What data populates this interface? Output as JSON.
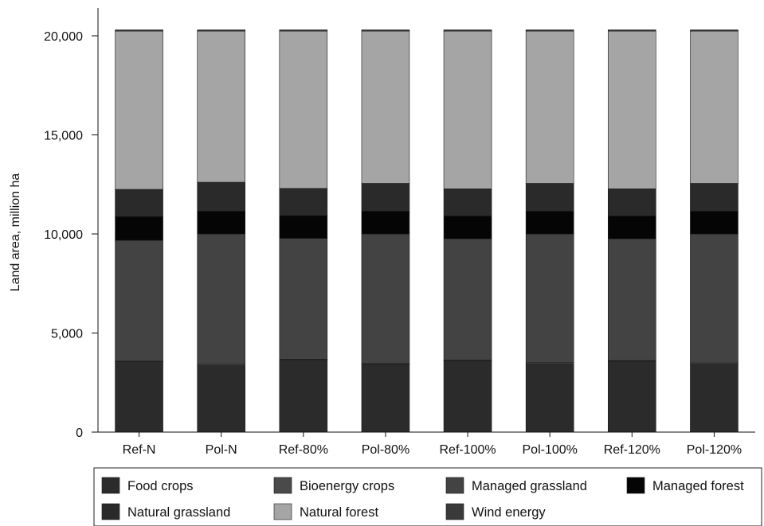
{
  "chart_data": {
    "type": "bar",
    "stacked": true,
    "categories": [
      "Ref-N",
      "Pol-N",
      "Ref-80%",
      "Pol-80%",
      "Ref-100%",
      "Pol-100%",
      "Ref-120%",
      "Pol-120%"
    ],
    "series": [
      {
        "name": "Food crops",
        "color": "#2b2b2b",
        "values": [
          3550,
          3350,
          3650,
          3420,
          3600,
          3430,
          3580,
          3420
        ]
      },
      {
        "name": "Bioenergy crops",
        "color": "#4a4a4a",
        "values": [
          30,
          70,
          30,
          40,
          30,
          70,
          30,
          70
        ]
      },
      {
        "name": "Managed grassland",
        "color": "#434343",
        "values": [
          6100,
          6580,
          6100,
          6540,
          6130,
          6500,
          6150,
          6510
        ]
      },
      {
        "name": "Managed forest",
        "color": "#050505",
        "values": [
          1200,
          1150,
          1150,
          1150,
          1150,
          1150,
          1150,
          1150
        ]
      },
      {
        "name": "Natural grassland",
        "color": "#2a2a2a",
        "values": [
          1370,
          1460,
          1370,
          1400,
          1370,
          1400,
          1370,
          1400
        ]
      },
      {
        "name": "Natural forest",
        "color": "#a5a5a5",
        "values": [
          7990,
          7630,
          7940,
          7690,
          7960,
          7690,
          7960,
          7690
        ]
      },
      {
        "name": "Wind energy",
        "color": "#3a3a3a",
        "values": [
          60,
          60,
          60,
          60,
          60,
          60,
          60,
          60
        ]
      }
    ],
    "ylabel": "Land area, million ha",
    "xlabel": "",
    "ylim": [
      0,
      20500
    ],
    "yticks": [
      0,
      5000,
      10000,
      15000,
      20000
    ],
    "ytick_labels": [
      "0",
      "5,000",
      "10,000",
      "15,000",
      "20,000"
    ],
    "grid": false,
    "legend_position": "bottom"
  }
}
